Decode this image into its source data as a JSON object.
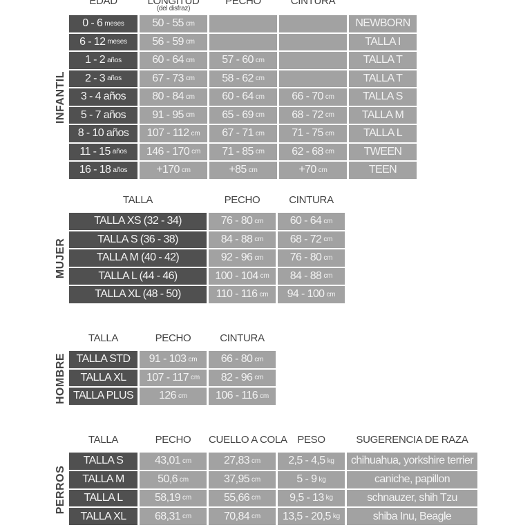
{
  "colors": {
    "dark_cell": "#505050",
    "light_cell": "#a2a2a2",
    "cell_text": "#f2f2f2"
  },
  "infantil": {
    "label": "INFANTIL",
    "headers": [
      {
        "t": "EDAD"
      },
      {
        "t": "LONGITUD",
        "sub": "(del disfraz)"
      },
      {
        "t": "PECHO"
      },
      {
        "t": "CINTURA"
      },
      {
        "t": ""
      }
    ],
    "rows": [
      [
        {
          "v": "0 - 6",
          "u": "meses"
        },
        {
          "v": "50 - 55",
          "u": "cm"
        },
        {
          "v": "",
          "u": ""
        },
        {
          "v": "",
          "u": ""
        },
        {
          "v": "NEWBORN",
          "u": ""
        }
      ],
      [
        {
          "v": "6 - 12",
          "u": "meses"
        },
        {
          "v": "56 - 59",
          "u": "cm"
        },
        {
          "v": "",
          "u": ""
        },
        {
          "v": "",
          "u": ""
        },
        {
          "v": "TALLA I",
          "u": ""
        }
      ],
      [
        {
          "v": "1 - 2",
          "u": "años"
        },
        {
          "v": "60 - 64",
          "u": "cm"
        },
        {
          "v": "57 - 60",
          "u": "cm"
        },
        {
          "v": "",
          "u": ""
        },
        {
          "v": "TALLA T",
          "u": ""
        }
      ],
      [
        {
          "v": "2 - 3",
          "u": "años"
        },
        {
          "v": "67 - 73",
          "u": "cm"
        },
        {
          "v": "58 - 62",
          "u": "cm"
        },
        {
          "v": "",
          "u": ""
        },
        {
          "v": "TALLA T",
          "u": ""
        }
      ],
      [
        {
          "v": "3 - 4 años",
          "u": ""
        },
        {
          "v": "80 - 84",
          "u": "cm"
        },
        {
          "v": "60 - 64",
          "u": "cm"
        },
        {
          "v": "66 - 70",
          "u": "cm"
        },
        {
          "v": "TALLA S",
          "u": ""
        }
      ],
      [
        {
          "v": "5 - 7 años",
          "u": ""
        },
        {
          "v": "91 - 95",
          "u": "cm"
        },
        {
          "v": "65 - 69",
          "u": "cm"
        },
        {
          "v": "68 - 72",
          "u": "cm"
        },
        {
          "v": "TALLA M",
          "u": ""
        }
      ],
      [
        {
          "v": "8 - 10 años",
          "u": ""
        },
        {
          "v": "107 - 112",
          "u": "cm"
        },
        {
          "v": "67 - 71",
          "u": "cm"
        },
        {
          "v": "71 - 75",
          "u": "cm"
        },
        {
          "v": "TALLA L",
          "u": ""
        }
      ],
      [
        {
          "v": "11 - 15",
          "u": "años"
        },
        {
          "v": "146 - 170",
          "u": "cm"
        },
        {
          "v": "71 - 85",
          "u": "cm"
        },
        {
          "v": "62 - 68",
          "u": "cm"
        },
        {
          "v": "TWEEN",
          "u": ""
        }
      ],
      [
        {
          "v": "16 - 18",
          "u": "años"
        },
        {
          "v": "+170",
          "u": "cm"
        },
        {
          "v": "+85",
          "u": "cm"
        },
        {
          "v": "+70",
          "u": "cm"
        },
        {
          "v": "TEEN",
          "u": ""
        }
      ]
    ]
  },
  "mujer": {
    "label": "MUJER",
    "headers": [
      {
        "t": "TALLA"
      },
      {
        "t": "PECHO"
      },
      {
        "t": "CINTURA"
      }
    ],
    "rows": [
      [
        {
          "v": "TALLA XS (32 - 34)",
          "u": ""
        },
        {
          "v": "76 - 80",
          "u": "cm"
        },
        {
          "v": "60 - 64",
          "u": "cm"
        }
      ],
      [
        {
          "v": "TALLA S (36 - 38)",
          "u": ""
        },
        {
          "v": "84 - 88",
          "u": "cm"
        },
        {
          "v": "68 - 72",
          "u": "cm"
        }
      ],
      [
        {
          "v": "TALLA M (40 - 42)",
          "u": ""
        },
        {
          "v": "92 - 96",
          "u": "cm"
        },
        {
          "v": "76 - 80",
          "u": "cm"
        }
      ],
      [
        {
          "v": "TALLA L (44 - 46)",
          "u": ""
        },
        {
          "v": "100 - 104",
          "u": "cm"
        },
        {
          "v": "84 - 88",
          "u": "cm"
        }
      ],
      [
        {
          "v": "TALLA XL (48 - 50)",
          "u": ""
        },
        {
          "v": "110 - 116",
          "u": "cm"
        },
        {
          "v": "94 - 100",
          "u": "cm"
        }
      ]
    ]
  },
  "hombre": {
    "label": "HOMBRE",
    "headers": [
      {
        "t": "TALLA"
      },
      {
        "t": "PECHO"
      },
      {
        "t": "CINTURA"
      }
    ],
    "rows": [
      [
        {
          "v": "TALLA STD",
          "u": ""
        },
        {
          "v": "91 - 103",
          "u": "cm"
        },
        {
          "v": "66 - 80",
          "u": "cm"
        }
      ],
      [
        {
          "v": "TALLA XL",
          "u": ""
        },
        {
          "v": "107 - 117",
          "u": "cm"
        },
        {
          "v": "82 - 96",
          "u": "cm"
        }
      ],
      [
        {
          "v": "TALLA PLUS",
          "u": ""
        },
        {
          "v": "126",
          "u": "cm"
        },
        {
          "v": "106 - 116",
          "u": "cm"
        }
      ]
    ]
  },
  "perros": {
    "label": "PERROS",
    "headers": [
      {
        "t": "TALLA"
      },
      {
        "t": "PECHO"
      },
      {
        "t": "CUELLO A COLA"
      },
      {
        "t": "PESO"
      },
      {
        "t": "SUGERENCIA DE RAZA"
      }
    ],
    "rows": [
      [
        {
          "v": "TALLA S",
          "u": ""
        },
        {
          "v": "43,01",
          "u": "cm"
        },
        {
          "v": "27,83",
          "u": "cm"
        },
        {
          "v": "2,5 - 4,5",
          "u": "kg"
        },
        {
          "v": "chihuahua, yorkshire terrier",
          "u": ""
        }
      ],
      [
        {
          "v": "TALLA M",
          "u": ""
        },
        {
          "v": "50,6",
          "u": "cm"
        },
        {
          "v": "37,95",
          "u": "cm"
        },
        {
          "v": "5 - 9",
          "u": "kg"
        },
        {
          "v": "caniche, papillon",
          "u": ""
        }
      ],
      [
        {
          "v": "TALLA L",
          "u": ""
        },
        {
          "v": "58,19",
          "u": "cm"
        },
        {
          "v": "55,66",
          "u": "cm"
        },
        {
          "v": "9,5 - 13",
          "u": "kg"
        },
        {
          "v": "schnauzer, shih Tzu",
          "u": ""
        }
      ],
      [
        {
          "v": "TALLA XL",
          "u": ""
        },
        {
          "v": "68,31",
          "u": "cm"
        },
        {
          "v": "70,84",
          "u": "cm"
        },
        {
          "v": "13,5 - 20,5",
          "u": "kg"
        },
        {
          "v": "shiba Inu, Beagle",
          "u": ""
        }
      ]
    ]
  }
}
